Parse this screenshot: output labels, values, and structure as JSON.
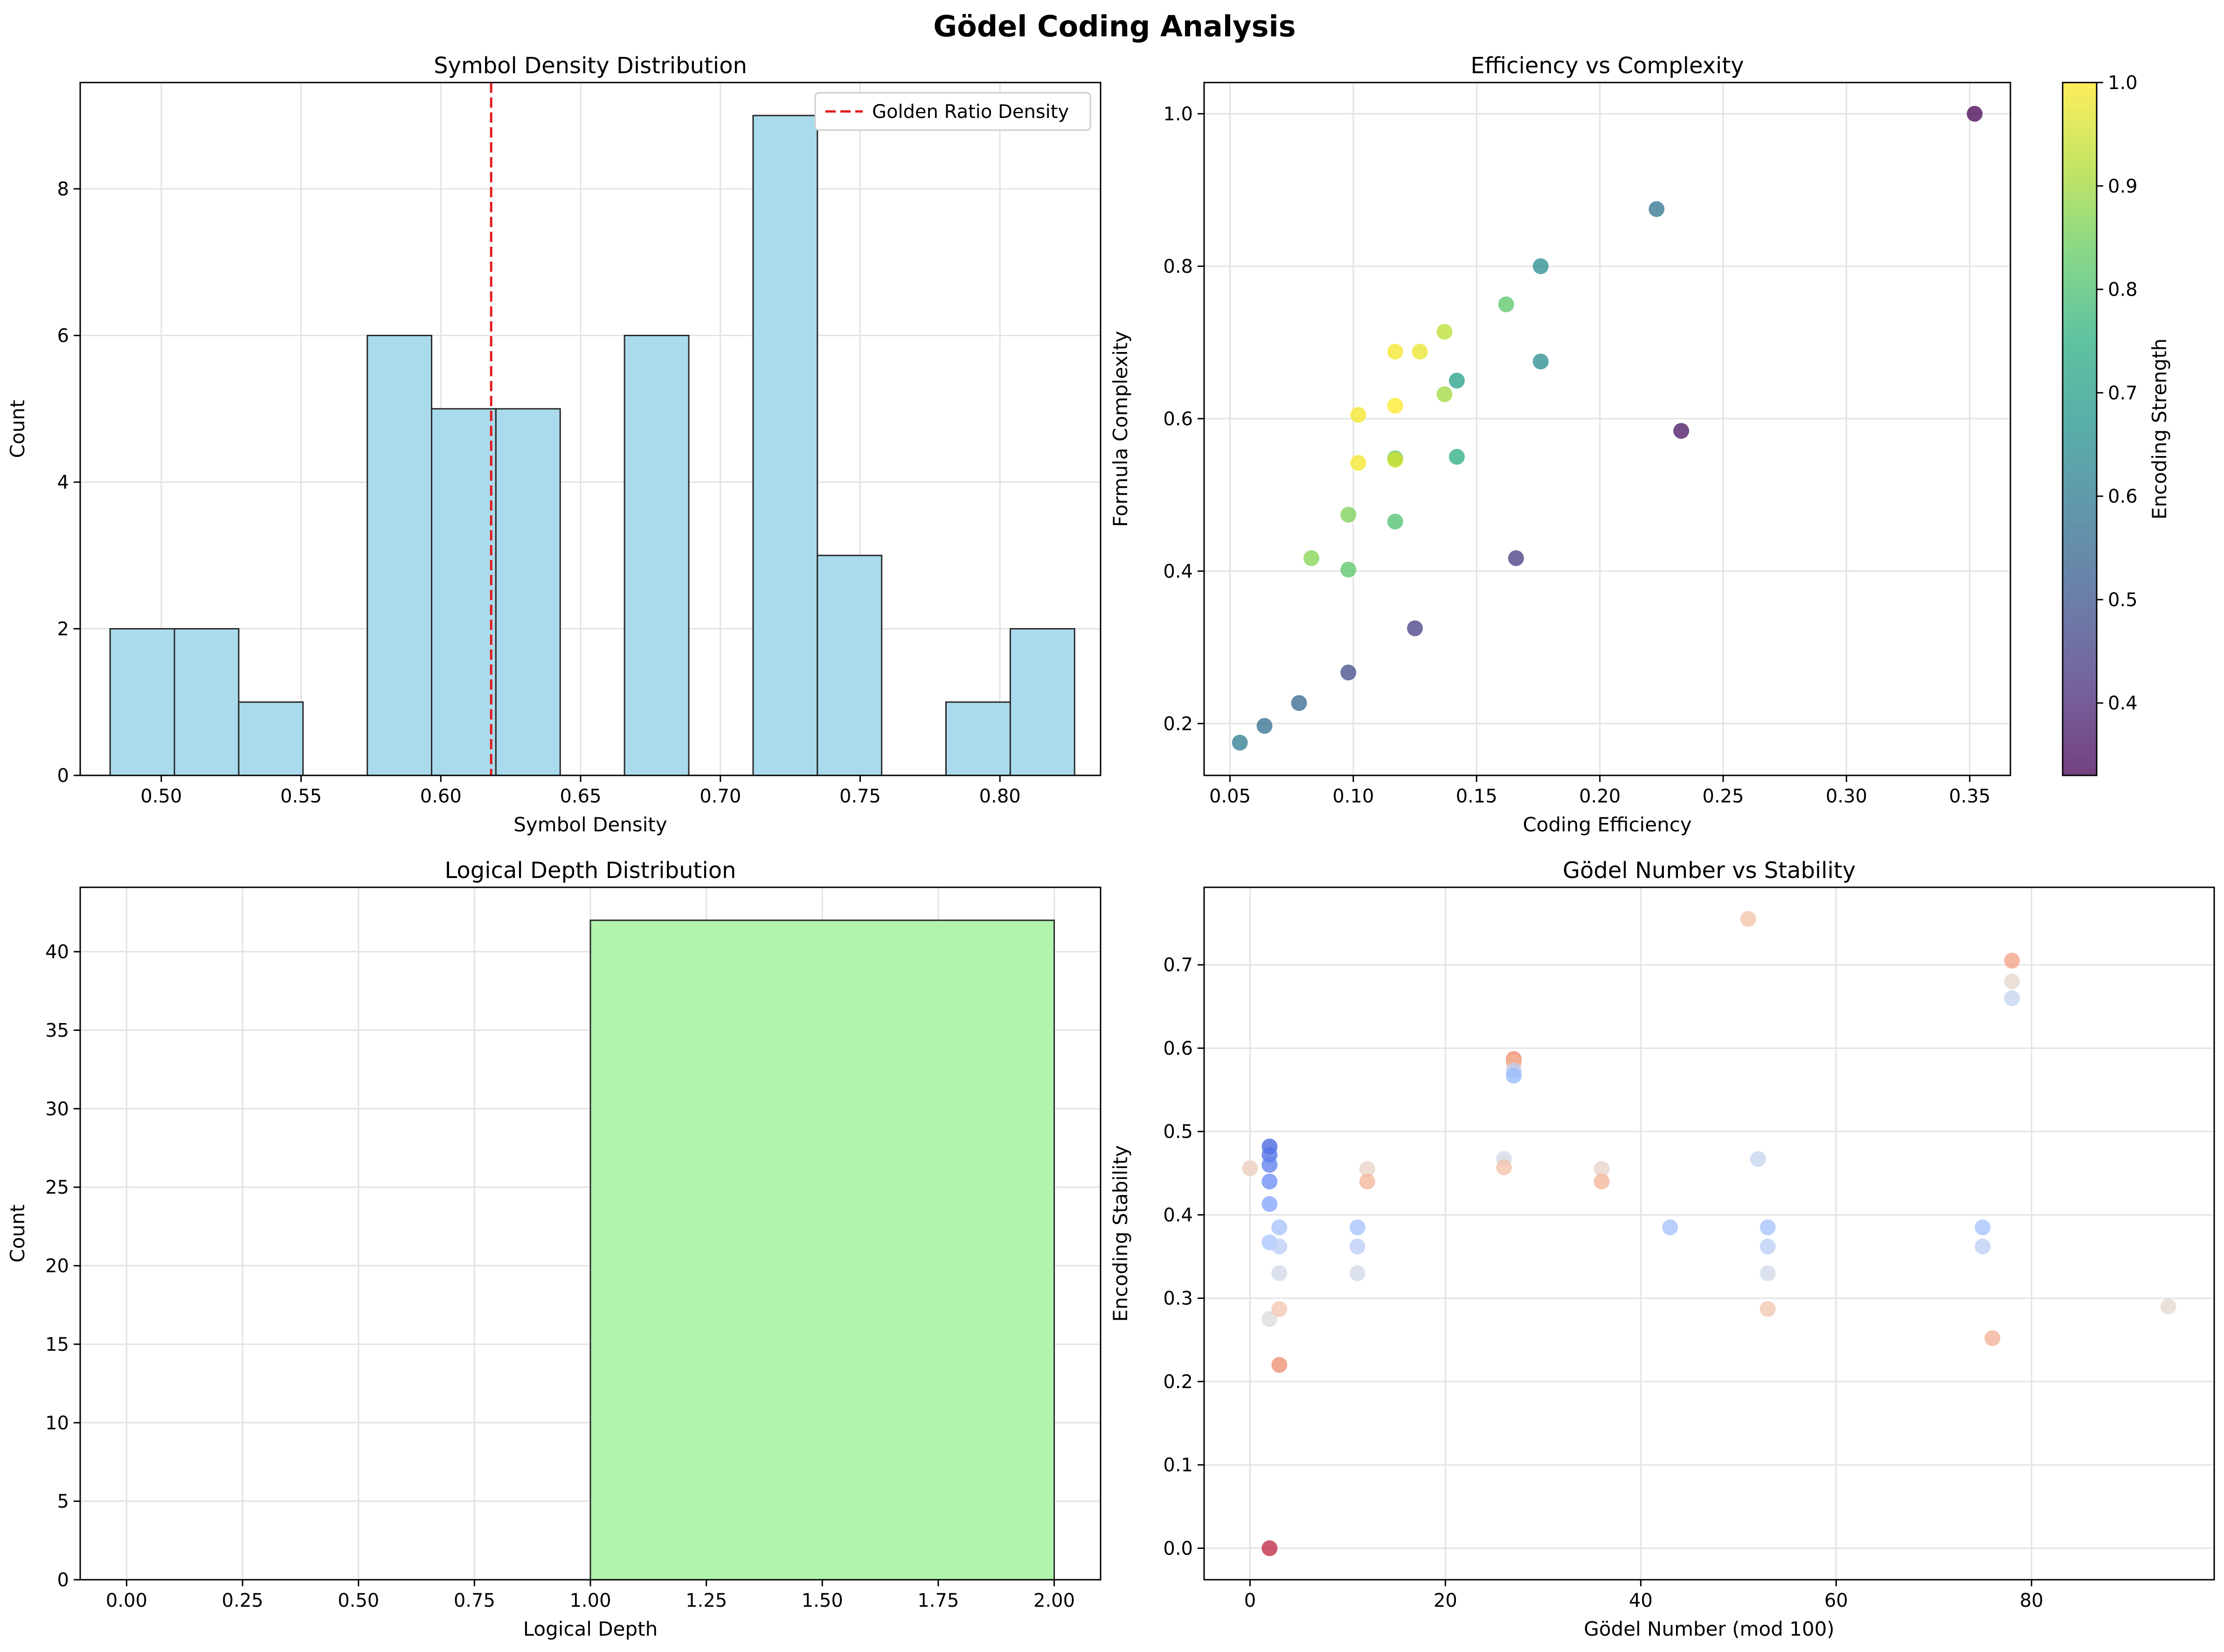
{
  "suptitle": "Gödel Coding Analysis",
  "chart_data": [
    {
      "type": "bar",
      "title": "Symbol Density Distribution",
      "xlabel": "Symbol Density",
      "ylabel": "Count",
      "xlim": [
        0.471,
        0.836
      ],
      "ylim": [
        0,
        9.45
      ],
      "xticks": [
        "0.50",
        "0.55",
        "0.60",
        "0.65",
        "0.70",
        "0.75",
        "0.80"
      ],
      "yticks": [
        "0",
        "2",
        "4",
        "6",
        "8"
      ],
      "grid": true,
      "bins": [
        {
          "x0": 0.4817,
          "x1": 0.5047,
          "count": 2
        },
        {
          "x0": 0.5047,
          "x1": 0.5277,
          "count": 2
        },
        {
          "x0": 0.5277,
          "x1": 0.5507,
          "count": 1
        },
        {
          "x0": 0.5507,
          "x1": 0.5737,
          "count": 0
        },
        {
          "x0": 0.5737,
          "x1": 0.5967,
          "count": 6
        },
        {
          "x0": 0.5967,
          "x1": 0.6197,
          "count": 5
        },
        {
          "x0": 0.6197,
          "x1": 0.6427,
          "count": 5
        },
        {
          "x0": 0.6427,
          "x1": 0.6657,
          "count": 0
        },
        {
          "x0": 0.6657,
          "x1": 0.6887,
          "count": 6
        },
        {
          "x0": 0.6887,
          "x1": 0.7117,
          "count": 0
        },
        {
          "x0": 0.7117,
          "x1": 0.7347,
          "count": 9
        },
        {
          "x0": 0.7347,
          "x1": 0.7577,
          "count": 3
        },
        {
          "x0": 0.7577,
          "x1": 0.7807,
          "count": 0
        },
        {
          "x0": 0.7807,
          "x1": 0.8037,
          "count": 1
        },
        {
          "x0": 0.8037,
          "x1": 0.8267,
          "count": 2
        }
      ],
      "reference_line": {
        "x": 0.618,
        "label": "Golden Ratio Density",
        "color": "#e41a1c"
      },
      "legend": "top-right",
      "bar_color": "#a9dbec"
    },
    {
      "type": "scatter",
      "title": "Efficiency vs Complexity",
      "xlabel": "Coding Efficiency",
      "ylabel": "Formula Complexity",
      "colorbar_label": "Encoding Strength",
      "xlim": [
        0.0395,
        0.3665
      ],
      "ylim": [
        0.132,
        1.041
      ],
      "xticks": [
        "0.05",
        "0.10",
        "0.15",
        "0.20",
        "0.25",
        "0.30",
        "0.35"
      ],
      "yticks": [
        "0.2",
        "0.4",
        "0.6",
        "0.8",
        "1.0"
      ],
      "colorbar_range": [
        0.33,
        1.0
      ],
      "colorbar_ticks": [
        "0.4",
        "0.5",
        "0.6",
        "0.7",
        "0.8",
        "0.9",
        "1.0"
      ],
      "grid": true,
      "points": [
        {
          "x": 0.352,
          "y": 1.0,
          "c": 0.33
        },
        {
          "x": 0.223,
          "y": 0.875,
          "c": 0.58
        },
        {
          "x": 0.176,
          "y": 0.8,
          "c": 0.65
        },
        {
          "x": 0.162,
          "y": 0.75,
          "c": 0.82
        },
        {
          "x": 0.137,
          "y": 0.714,
          "c": 0.93
        },
        {
          "x": 0.117,
          "y": 0.688,
          "c": 0.99
        },
        {
          "x": 0.127,
          "y": 0.688,
          "c": 0.98
        },
        {
          "x": 0.176,
          "y": 0.675,
          "c": 0.65
        },
        {
          "x": 0.142,
          "y": 0.65,
          "c": 0.7
        },
        {
          "x": 0.137,
          "y": 0.632,
          "c": 0.9
        },
        {
          "x": 0.117,
          "y": 0.617,
          "c": 1.0
        },
        {
          "x": 0.102,
          "y": 0.605,
          "c": 0.99
        },
        {
          "x": 0.233,
          "y": 0.584,
          "c": 0.36
        },
        {
          "x": 0.142,
          "y": 0.55,
          "c": 0.74
        },
        {
          "x": 0.117,
          "y": 0.548,
          "c": 0.82
        },
        {
          "x": 0.117,
          "y": 0.546,
          "c": 0.96
        },
        {
          "x": 0.102,
          "y": 0.542,
          "c": 0.99
        },
        {
          "x": 0.098,
          "y": 0.474,
          "c": 0.86
        },
        {
          "x": 0.117,
          "y": 0.465,
          "c": 0.8
        },
        {
          "x": 0.083,
          "y": 0.417,
          "c": 0.87
        },
        {
          "x": 0.166,
          "y": 0.417,
          "c": 0.44
        },
        {
          "x": 0.098,
          "y": 0.402,
          "c": 0.82
        },
        {
          "x": 0.125,
          "y": 0.325,
          "c": 0.45
        },
        {
          "x": 0.098,
          "y": 0.267,
          "c": 0.48
        },
        {
          "x": 0.078,
          "y": 0.227,
          "c": 0.55
        },
        {
          "x": 0.064,
          "y": 0.197,
          "c": 0.57
        },
        {
          "x": 0.054,
          "y": 0.175,
          "c": 0.6
        }
      ]
    },
    {
      "type": "bar",
      "title": "Logical Depth Distribution",
      "xlabel": "Logical Depth",
      "ylabel": "Count",
      "xlim": [
        -0.1,
        2.1
      ],
      "ylim": [
        0,
        44.1
      ],
      "xticks": [
        "0.00",
        "0.25",
        "0.50",
        "0.75",
        "1.00",
        "1.25",
        "1.50",
        "1.75",
        "2.00"
      ],
      "yticks": [
        "0",
        "5",
        "10",
        "15",
        "20",
        "25",
        "30",
        "35",
        "40"
      ],
      "grid": true,
      "bins": [
        {
          "x0": 0,
          "x1": 1,
          "count": 0
        },
        {
          "x0": 1,
          "x1": 2,
          "count": 42
        }
      ],
      "bar_color": "#b0f4ae"
    },
    {
      "type": "scatter",
      "title": "Gödel Number vs Stability",
      "xlabel": "Gödel Number (mod 100)",
      "ylabel": "Encoding Stability",
      "xlim": [
        -4.7,
        98.7
      ],
      "ylim": [
        -0.0378,
        0.793
      ],
      "xticks": [
        "0",
        "20",
        "40",
        "60",
        "80"
      ],
      "yticks": [
        "0.0",
        "0.1",
        "0.2",
        "0.3",
        "0.4",
        "0.5",
        "0.6",
        "0.7"
      ],
      "grid": true,
      "points": [
        {
          "x": 51,
          "y": 0.755,
          "c": "#f2c6ad"
        },
        {
          "x": 78,
          "y": 0.705,
          "c": "#f4a588"
        },
        {
          "x": 78,
          "y": 0.68,
          "c": "#e8d8cf"
        },
        {
          "x": 78,
          "y": 0.66,
          "c": "#c6d6f1"
        },
        {
          "x": 27,
          "y": 0.587,
          "c": "#ef8c6f"
        },
        {
          "x": 27,
          "y": 0.583,
          "c": "#f4b095"
        },
        {
          "x": 27,
          "y": 0.573,
          "c": "#bbd0f6"
        },
        {
          "x": 27,
          "y": 0.567,
          "c": "#9bbcfa"
        },
        {
          "x": 2,
          "y": 0.482,
          "c": "#4d6be0"
        },
        {
          "x": 2,
          "y": 0.472,
          "c": "#5574e6"
        },
        {
          "x": 2,
          "y": 0.46,
          "c": "#6283ee"
        },
        {
          "x": 2,
          "y": 0.44,
          "c": "#7191f5"
        },
        {
          "x": 2,
          "y": 0.413,
          "c": "#86a8fd"
        },
        {
          "x": 2,
          "y": 0.367,
          "c": "#adc7fb"
        },
        {
          "x": 2,
          "y": 0.275,
          "c": "#dddcdb"
        },
        {
          "x": 2,
          "y": 0.0,
          "c": "#c0304b"
        },
        {
          "x": 0,
          "y": 0.456,
          "c": "#eecdbd"
        },
        {
          "x": 3,
          "y": 0.385,
          "c": "#a7c4fb"
        },
        {
          "x": 3,
          "y": 0.362,
          "c": "#bdd0f5"
        },
        {
          "x": 3,
          "y": 0.33,
          "c": "#d3dbe8"
        },
        {
          "x": 3,
          "y": 0.287,
          "c": "#f3c8b2"
        },
        {
          "x": 3,
          "y": 0.22,
          "c": "#ee9477"
        },
        {
          "x": 11,
          "y": 0.385,
          "c": "#a7c4fb"
        },
        {
          "x": 11,
          "y": 0.362,
          "c": "#bdd0f5"
        },
        {
          "x": 11,
          "y": 0.33,
          "c": "#d3dbe8"
        },
        {
          "x": 12,
          "y": 0.455,
          "c": "#ead5ca"
        },
        {
          "x": 12,
          "y": 0.44,
          "c": "#f4b89e"
        },
        {
          "x": 26,
          "y": 0.467,
          "c": "#d2dbe9"
        },
        {
          "x": 26,
          "y": 0.457,
          "c": "#f2c4ad"
        },
        {
          "x": 36,
          "y": 0.455,
          "c": "#ead5ca"
        },
        {
          "x": 36,
          "y": 0.44,
          "c": "#f4b89e"
        },
        {
          "x": 43,
          "y": 0.385,
          "c": "#a7c4fb"
        },
        {
          "x": 52,
          "y": 0.467,
          "c": "#c7d6ef"
        },
        {
          "x": 53,
          "y": 0.385,
          "c": "#a7c4fb"
        },
        {
          "x": 53,
          "y": 0.362,
          "c": "#bdd0f5"
        },
        {
          "x": 53,
          "y": 0.33,
          "c": "#d3dbe8"
        },
        {
          "x": 53,
          "y": 0.287,
          "c": "#f3c8b2"
        },
        {
          "x": 75,
          "y": 0.385,
          "c": "#a7c4fb"
        },
        {
          "x": 75,
          "y": 0.362,
          "c": "#bdd0f5"
        },
        {
          "x": 76,
          "y": 0.252,
          "c": "#f1b39a"
        },
        {
          "x": 94,
          "y": 0.29,
          "c": "#e4d9d2"
        }
      ]
    }
  ]
}
